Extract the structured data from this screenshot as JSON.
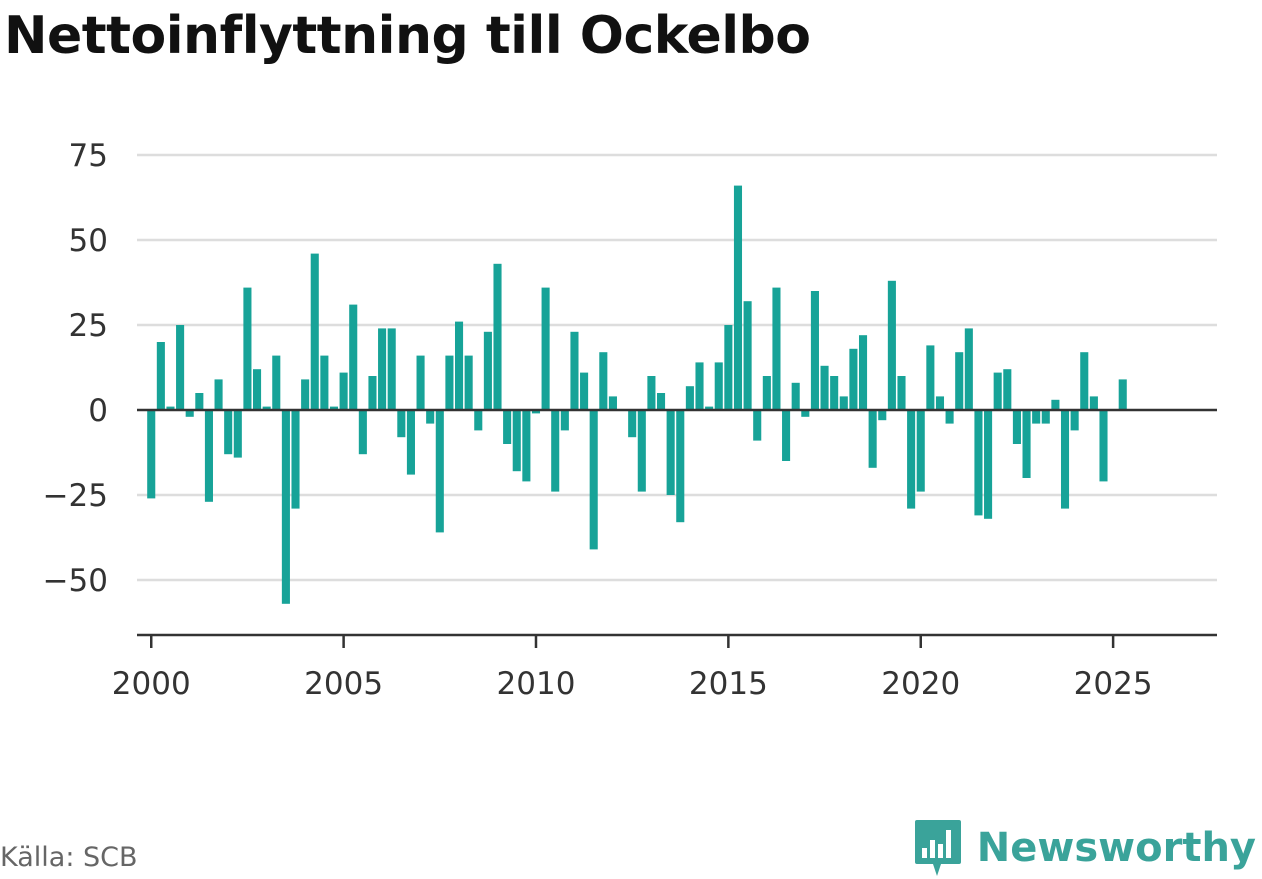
{
  "title": "Nettoinflyttning till Ockelbo",
  "source": "Källa: SCB",
  "brand": {
    "name": "Newsworthy",
    "icon": "newsworthy-logo-icon"
  },
  "colors": {
    "bar": "#17a398",
    "grid": "#dddddd",
    "axis": "#333333",
    "brand": "#3aa39a"
  },
  "chart_data": {
    "type": "bar",
    "title": "Nettoinflyttning till Ockelbo",
    "xlabel": "",
    "ylabel": "",
    "x_ticks": [
      "2000",
      "2005",
      "2010",
      "2015",
      "2020",
      "2025"
    ],
    "y_ticks": [
      75,
      50,
      25,
      0,
      -25,
      -50
    ],
    "y_tick_labels": [
      "75",
      "50",
      "25",
      "0",
      "−25",
      "−50"
    ],
    "ylim": [
      -65,
      85
    ],
    "xlim": [
      1999.63,
      2027.7
    ],
    "grid": true,
    "legend": "none",
    "x_start": 2000.0,
    "x_step": 0.25,
    "series": [
      {
        "values": [
          -26,
          20,
          1,
          25,
          -2,
          5,
          -27,
          9,
          -13,
          -14,
          36,
          12,
          1,
          16,
          -57,
          -29,
          9,
          46,
          16,
          1,
          11,
          31,
          -13,
          10,
          24,
          24,
          -8,
          -19,
          16,
          -4,
          -36,
          16,
          26,
          16,
          -6,
          23,
          43,
          -10,
          -18,
          -21,
          -1,
          36,
          -24,
          -6,
          23,
          11,
          -41,
          17,
          4,
          0,
          -8,
          -24,
          10,
          5,
          -25,
          -33,
          7,
          14,
          1,
          14,
          25,
          66,
          32,
          -9,
          10,
          36,
          -15,
          8,
          -2,
          35,
          13,
          10,
          4,
          18,
          22,
          -17,
          -3,
          38,
          10,
          -29,
          -24,
          19,
          4,
          -4,
          17,
          24,
          -31,
          -32,
          11,
          12,
          -10,
          -20,
          -4,
          -4,
          3,
          -29,
          -6,
          17,
          4,
          -21,
          0,
          9
        ]
      }
    ]
  }
}
